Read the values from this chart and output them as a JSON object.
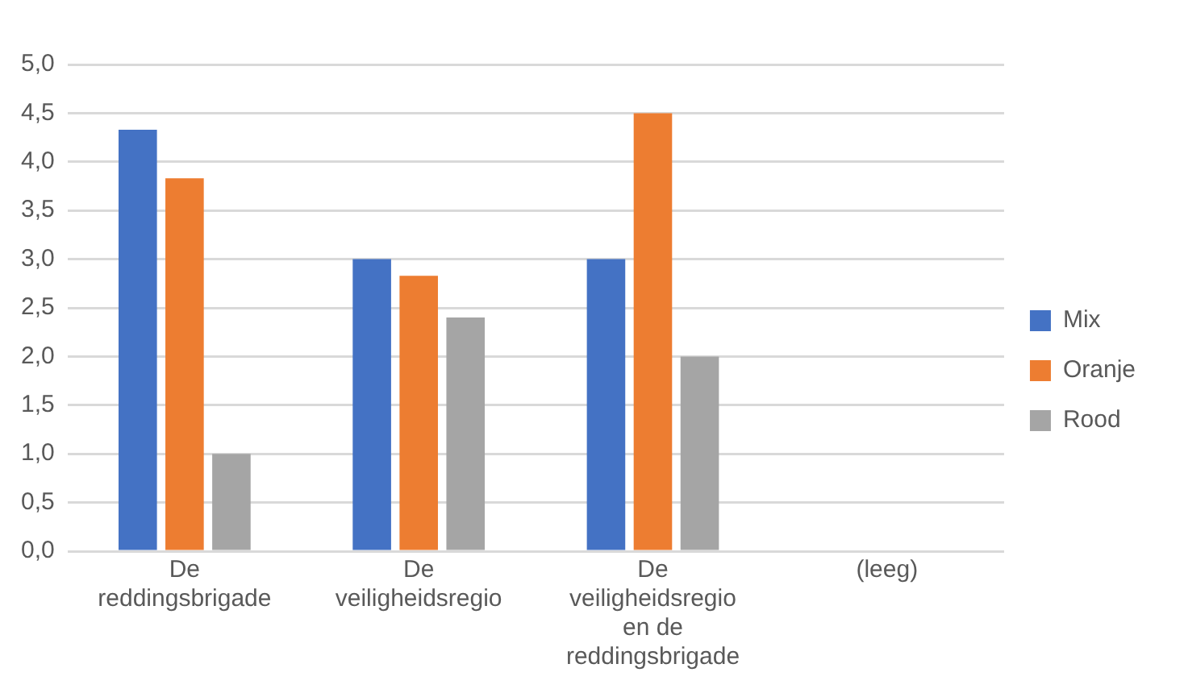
{
  "chart_data": {
    "type": "bar",
    "categories": [
      "De reddingsbrigade",
      "De veiligheidsregio",
      "De veiligheidsregio en de reddingsbrigade",
      "(leeg)"
    ],
    "series": [
      {
        "name": "Mix",
        "color": "#4472c4",
        "values": [
          4.33,
          3.0,
          3.0,
          null
        ]
      },
      {
        "name": "Oranje",
        "color": "#ed7d31",
        "values": [
          3.83,
          2.83,
          4.5,
          null
        ]
      },
      {
        "name": "Rood",
        "color": "#a5a5a5",
        "values": [
          1.0,
          2.4,
          2.0,
          null
        ]
      }
    ],
    "ylim": [
      0,
      5
    ],
    "yticks": [
      {
        "value": 0,
        "label": "0,0"
      },
      {
        "value": 0.5,
        "label": "0,5"
      },
      {
        "value": 1,
        "label": "1,0"
      },
      {
        "value": 1.5,
        "label": "1,5"
      },
      {
        "value": 2,
        "label": "2,0"
      },
      {
        "value": 2.5,
        "label": "2,5"
      },
      {
        "value": 3,
        "label": "3,0"
      },
      {
        "value": 3.5,
        "label": "3,5"
      },
      {
        "value": 4,
        "label": "4,0"
      },
      {
        "value": 4.5,
        "label": "4,5"
      },
      {
        "value": 5,
        "label": "5,0"
      }
    ],
    "grid": "y",
    "legend": "right"
  }
}
